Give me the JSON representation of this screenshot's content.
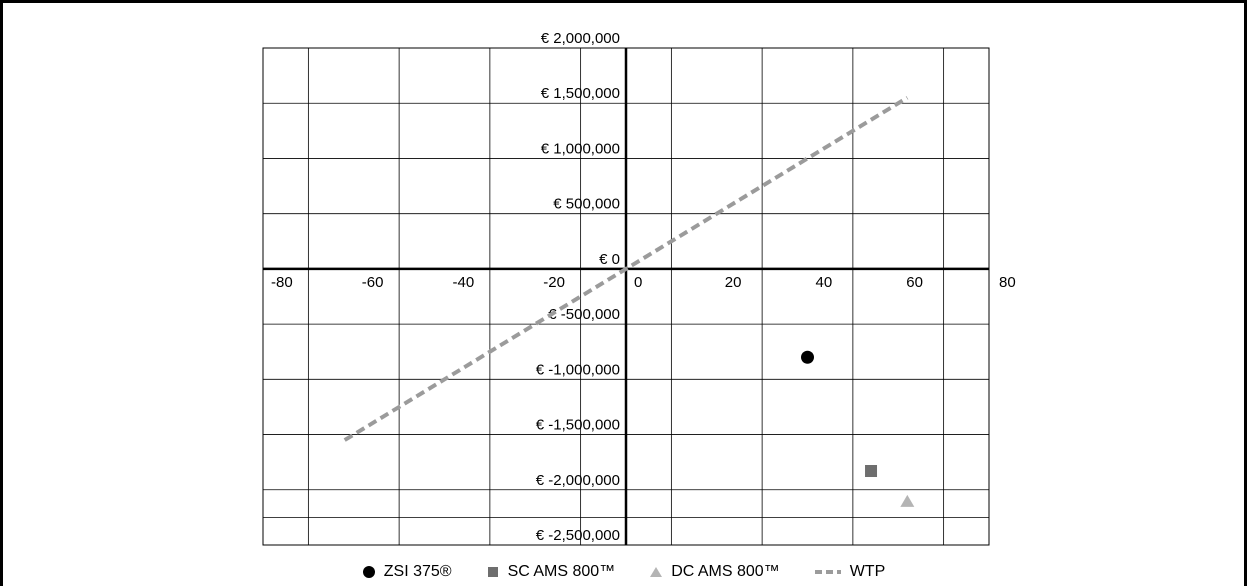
{
  "chart_data": {
    "type": "scatter",
    "title": "",
    "xlabel": "",
    "ylabel": "",
    "xlim": [
      -80,
      80
    ],
    "ylim": [
      -2500000,
      2000000
    ],
    "x_ticks": [
      -80,
      -60,
      -40,
      -20,
      0,
      20,
      40,
      60,
      80
    ],
    "x_tick_labels": [
      "-80",
      "-60",
      "-40",
      "-20",
      "0",
      "20",
      "40",
      "60",
      "80"
    ],
    "y_ticks": [
      2000000,
      1500000,
      1000000,
      500000,
      0,
      -500000,
      -1000000,
      -1500000,
      -2000000,
      -2500000
    ],
    "y_tick_labels": [
      "€ 2,000,000",
      "€ 1,500,000",
      "€ 1,000,000",
      "€ 500,000",
      "€ 0",
      "€ -500,000",
      "€ -1,000,000",
      "€ -1,500,000",
      "€ -2,000,000",
      "€ -2,500,000"
    ],
    "grid": true,
    "legend_position": "bottom",
    "series": [
      {
        "name": "ZSI 375®",
        "marker": "circle",
        "color": "#000000",
        "points": [
          {
            "x": 40,
            "y": -800000
          }
        ]
      },
      {
        "name": "SC AMS 800™",
        "marker": "square",
        "color": "#6e6e6e",
        "points": [
          {
            "x": 54,
            "y": -1830000
          }
        ]
      },
      {
        "name": "DC AMS 800™",
        "marker": "triangle",
        "color": "#b4b4b4",
        "points": [
          {
            "x": 62,
            "y": -2100000
          }
        ]
      },
      {
        "name": "WTP",
        "type": "line",
        "style": "dashed",
        "color": "#9b9b9b",
        "points": [
          {
            "x": -62,
            "y": -1550000
          },
          {
            "x": 62,
            "y": 1550000
          }
        ]
      }
    ]
  }
}
